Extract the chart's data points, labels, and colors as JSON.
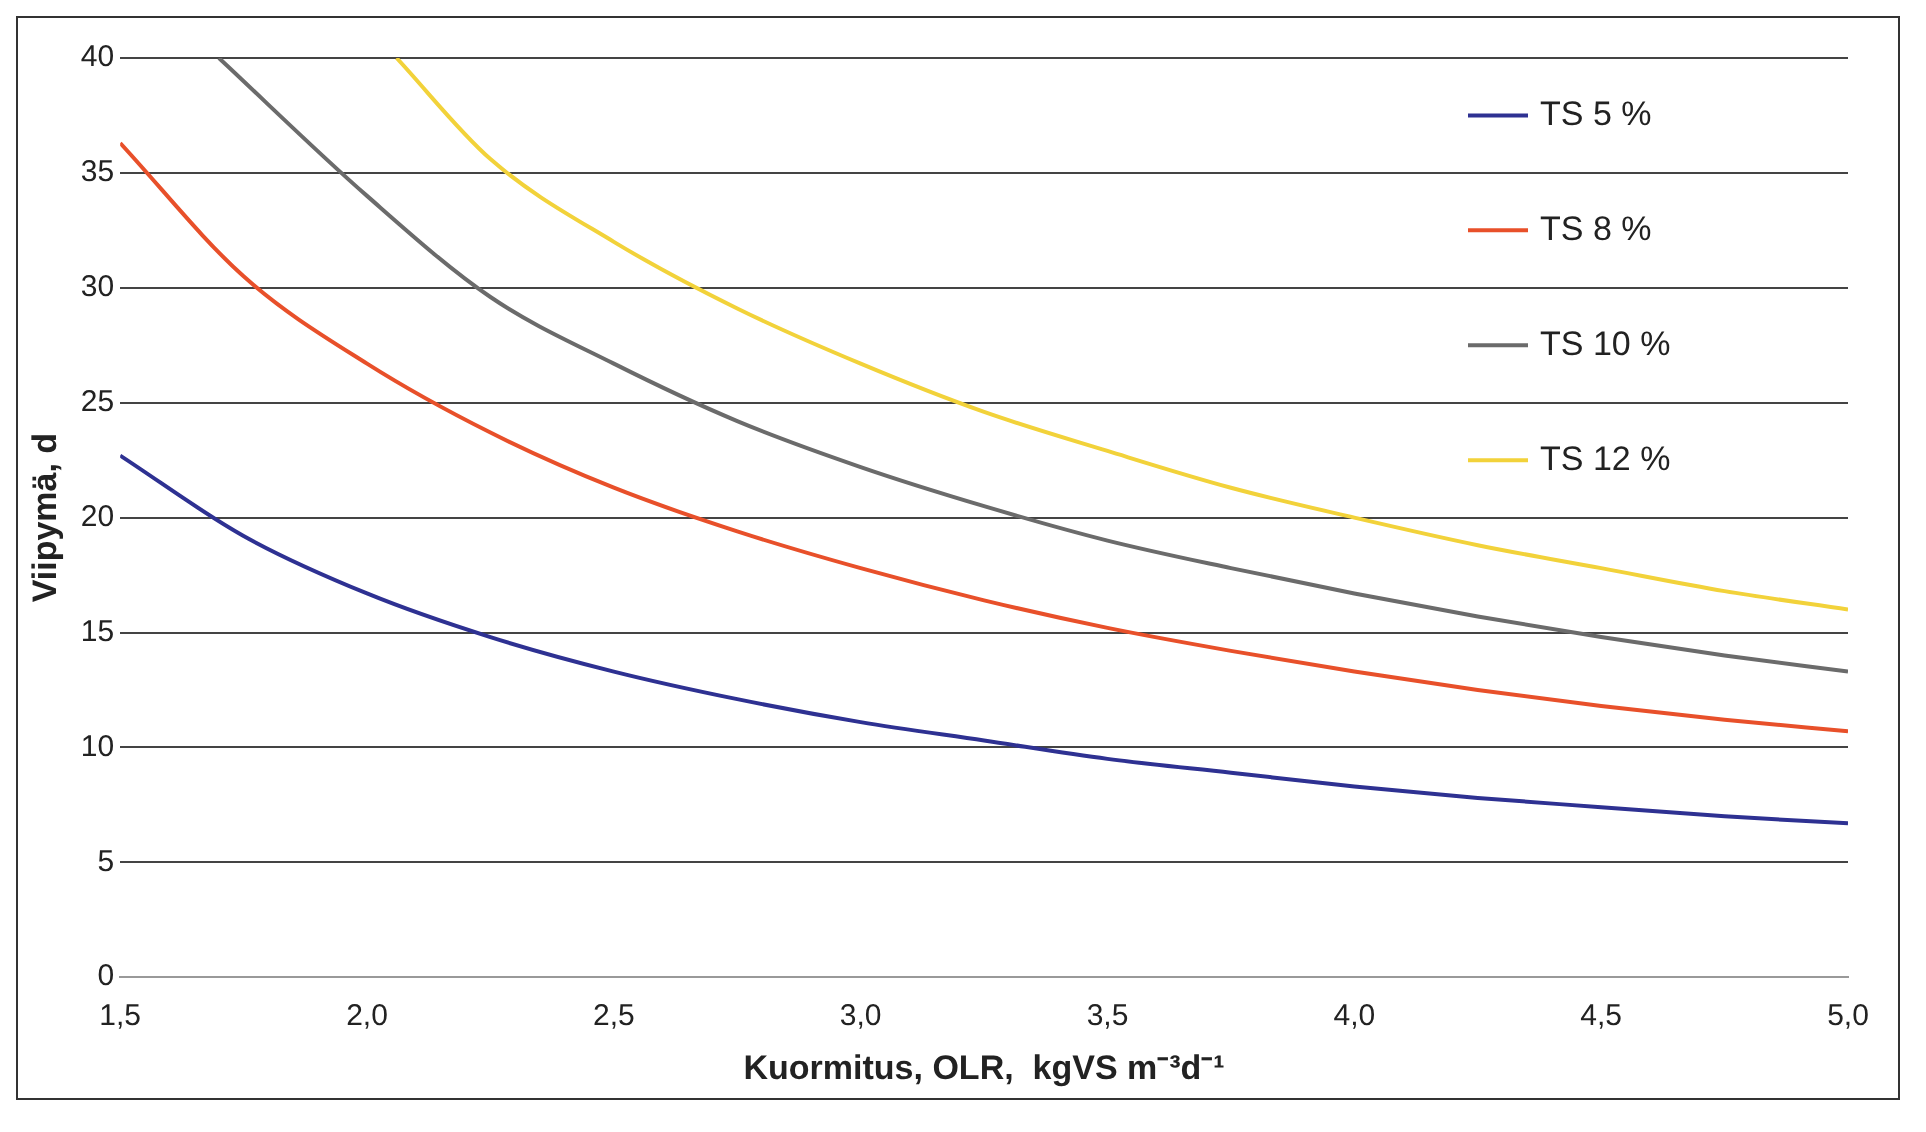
{
  "chart_data": {
    "type": "line",
    "xlabel": "Kuormitus, OLR,  kgVS m⁻³d⁻¹",
    "ylabel": "Viipymä, d",
    "xlim": [
      1.5,
      5.0
    ],
    "xticks": [
      {
        "value": 1.5,
        "label": "1,5"
      },
      {
        "value": 2.0,
        "label": "2,0"
      },
      {
        "value": 2.5,
        "label": "2,5"
      },
      {
        "value": 3.0,
        "label": "3,0"
      },
      {
        "value": 3.5,
        "label": "3,5"
      },
      {
        "value": 4.0,
        "label": "4,0"
      },
      {
        "value": 4.5,
        "label": "4,5"
      },
      {
        "value": 5.0,
        "label": "5,0"
      }
    ],
    "ylim": [
      0,
      40
    ],
    "yticks": [
      0,
      5,
      10,
      15,
      20,
      25,
      30,
      35,
      40
    ],
    "grid": "y",
    "legend": "top right",
    "marker": "none",
    "line_style": "solid",
    "series": [
      {
        "name": "TS 5 %",
        "color": "#2e3192",
        "x": [
          1.5,
          1.75,
          2.0,
          2.25,
          2.5,
          2.75,
          3.0,
          3.25,
          3.5,
          3.75,
          4.0,
          4.25,
          4.5,
          4.75,
          5.0
        ],
        "values": [
          22.7,
          19.2,
          16.7,
          14.8,
          13.3,
          12.1,
          11.1,
          10.3,
          9.5,
          8.9,
          8.3,
          7.8,
          7.4,
          7.0,
          6.7
        ]
      },
      {
        "name": "TS 8 %",
        "color": "#e8502a",
        "x": [
          1.5,
          1.75,
          2.0,
          2.25,
          2.5,
          2.75,
          3.0,
          3.25,
          3.5,
          3.75,
          4.0,
          4.25,
          4.5,
          4.75,
          5.0
        ],
        "values": [
          36.3,
          30.5,
          26.7,
          23.7,
          21.3,
          19.4,
          17.8,
          16.4,
          15.2,
          14.2,
          13.3,
          12.5,
          11.8,
          11.2,
          10.7
        ]
      },
      {
        "name": "TS 10 %",
        "color": "#6b6b6b",
        "x": [
          1.7,
          2.0,
          2.25,
          2.5,
          2.75,
          3.0,
          3.25,
          3.5,
          3.75,
          4.0,
          4.25,
          4.5,
          4.75,
          5.0
        ],
        "values": [
          40,
          34,
          29.6,
          26.7,
          24.2,
          22.2,
          20.5,
          19.0,
          17.8,
          16.7,
          15.7,
          14.8,
          14.0,
          13.3
        ]
      },
      {
        "name": "TS 12 %",
        "color": "#f2d23a",
        "x": [
          2.06,
          2.25,
          2.5,
          2.75,
          3.0,
          3.25,
          3.5,
          3.75,
          4.0,
          4.25,
          4.5,
          4.75,
          5.0
        ],
        "values": [
          40,
          35.6,
          32,
          29.1,
          26.7,
          24.6,
          22.9,
          21.3,
          20,
          18.8,
          17.8,
          16.8,
          16
        ]
      }
    ]
  }
}
